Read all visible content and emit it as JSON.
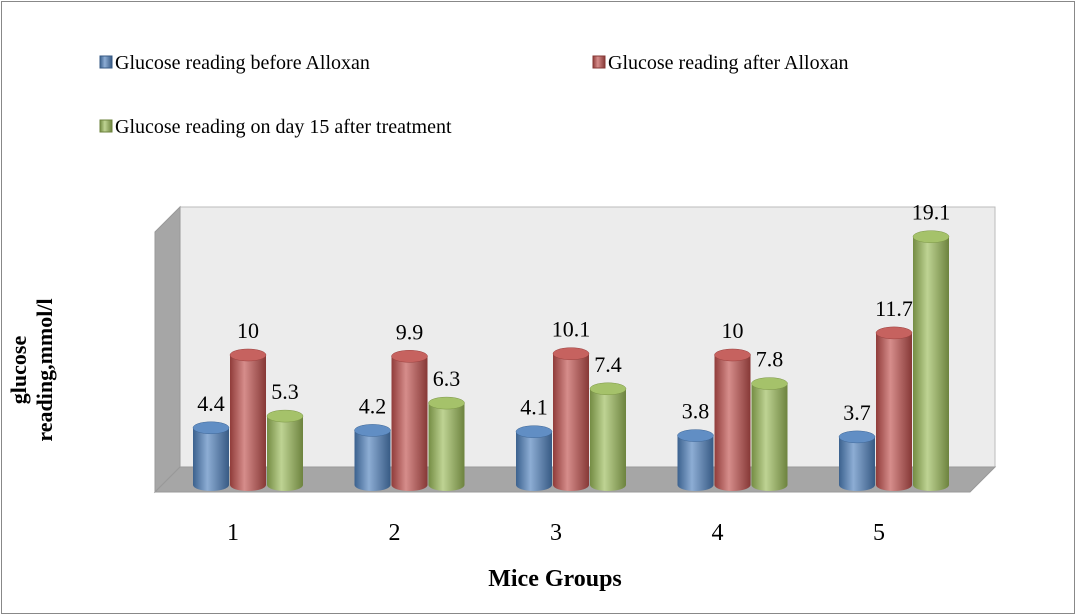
{
  "chart_data": {
    "type": "bar",
    "style": "3d-cylinder",
    "x_label": "Mice Groups",
    "y_label": "glucose reading,mmol/l",
    "categories": [
      "1",
      "2",
      "3",
      "4",
      "5"
    ],
    "series": [
      {
        "name": "Glucose reading before Alloxan",
        "color": "#4f81bd",
        "values": [
          4.4,
          4.2,
          4.1,
          3.8,
          3.7
        ]
      },
      {
        "name": "Glucose reading after Alloxan",
        "color": "#c0504d",
        "values": [
          10,
          9.9,
          10.1,
          10,
          11.7
        ]
      },
      {
        "name": "Glucose reading on day 15 after treatment",
        "color": "#9bbb59",
        "values": [
          5.3,
          6.3,
          7.4,
          7.8,
          19.1
        ]
      }
    ]
  }
}
